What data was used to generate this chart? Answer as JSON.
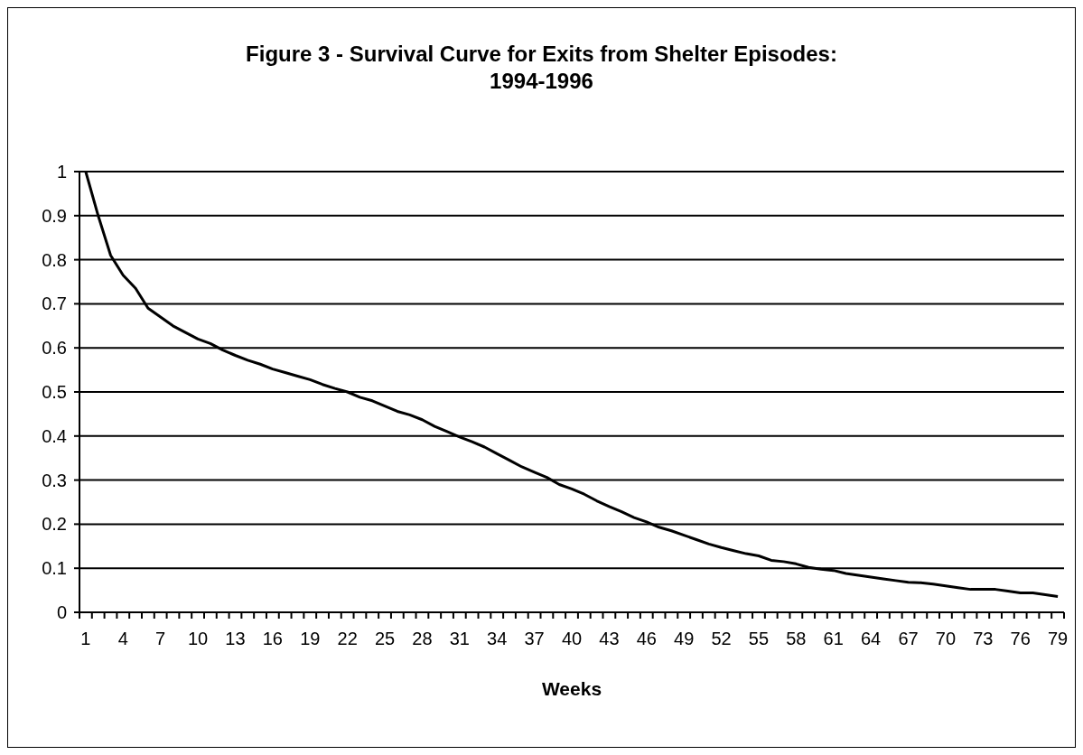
{
  "chart_data": {
    "type": "line",
    "title": "Figure 3 - Survival Curve for Exits from Shelter Episodes:\n1994-1996",
    "xlabel": "Weeks",
    "categories": [
      "1",
      null,
      null,
      "4",
      null,
      null,
      "7",
      null,
      null,
      "10",
      null,
      null,
      "13",
      null,
      null,
      "16",
      null,
      null,
      "19",
      null,
      null,
      "22",
      null,
      null,
      "25",
      null,
      null,
      "28",
      null,
      null,
      "31",
      null,
      null,
      "34",
      null,
      null,
      "37",
      null,
      null,
      "40",
      null,
      null,
      "43",
      null,
      null,
      "46",
      null,
      null,
      "49",
      null,
      null,
      "52",
      null,
      null,
      "55",
      null,
      null,
      "58",
      null,
      null,
      "61",
      null,
      null,
      "64",
      null,
      null,
      "67",
      null,
      null,
      "70",
      null,
      null,
      "73",
      null,
      null,
      "76",
      null,
      null,
      "79"
    ],
    "series": [
      {
        "color": "#000000",
        "values": [
          1.0,
          0.9,
          0.81,
          0.765,
          0.735,
          0.69,
          0.67,
          0.65,
          0.635,
          0.62,
          0.61,
          0.595,
          0.583,
          0.572,
          0.563,
          0.552,
          0.544,
          0.536,
          0.528,
          0.517,
          0.508,
          0.5,
          0.488,
          0.48,
          0.468,
          0.456,
          0.448,
          0.437,
          0.422,
          0.41,
          0.398,
          0.387,
          0.375,
          0.36,
          0.345,
          0.33,
          0.318,
          0.306,
          0.29,
          0.28,
          0.268,
          0.253,
          0.24,
          0.228,
          0.215,
          0.205,
          0.193,
          0.185,
          0.175,
          0.165,
          0.155,
          0.147,
          0.14,
          0.133,
          0.128,
          0.118,
          0.115,
          0.11,
          0.102,
          0.098,
          0.095,
          0.088,
          0.084,
          0.08,
          0.076,
          0.072,
          0.068,
          0.067,
          0.064,
          0.06,
          0.056,
          0.052,
          0.052,
          0.052,
          0.048,
          0.044,
          0.044,
          0.04,
          0.036
        ]
      }
    ],
    "ylim": [
      0,
      1
    ],
    "yticks": [
      0,
      0.1,
      0.2,
      0.3,
      0.4,
      0.5,
      0.6,
      0.7,
      0.8,
      0.9,
      1
    ],
    "grid": "y",
    "marker": "none",
    "line_style": "solid"
  }
}
